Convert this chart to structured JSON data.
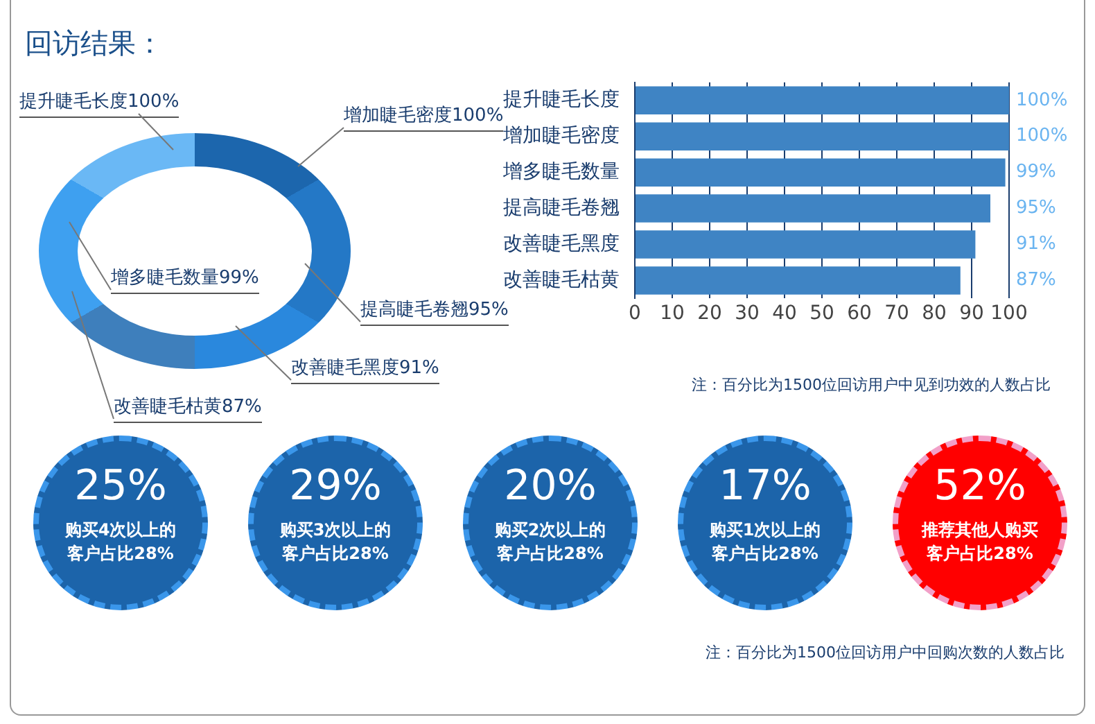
{
  "chart_data": [
    {
      "type": "other",
      "title": "回访结果：",
      "annotations": [
        "提升睫毛长度100%",
        "增加睫毛密度100%",
        "增多睫毛数量99%",
        "提高睫毛卷翘95%",
        "改善睫毛黑度91%",
        "改善睫毛枯黄87%"
      ]
    },
    {
      "type": "bar",
      "orientation": "horizontal",
      "categories": [
        "提升睫毛长度",
        "增加睫毛密度",
        "增多睫毛数量",
        "提高睫毛卷翘",
        "改善睫毛黑度",
        "改善睫毛枯黄"
      ],
      "values": [
        100,
        100,
        99,
        95,
        91,
        87
      ],
      "value_labels": [
        "100%",
        "100%",
        "99%",
        "95%",
        "91%",
        "87%"
      ],
      "color": "#3f84c4",
      "xlim": [
        0,
        100
      ],
      "xticks": [
        0,
        10,
        20,
        30,
        40,
        50,
        60,
        70,
        80,
        90,
        100
      ],
      "grid": "x",
      "annotations": [
        "注：百分比为1500位回访用户中见到功效的人数占比"
      ]
    },
    {
      "type": "other",
      "colors": [
        "#1c64aa",
        "#1c64aa",
        "#1c64aa",
        "#1c64aa",
        "#ff0000"
      ],
      "annotations": [
        "25%",
        "购买4次以上的",
        "客户占比28%",
        "29%",
        "购买3次以上的",
        "客户占比28%",
        "20%",
        "购买2次以上的",
        "客户占比28%",
        "17%",
        "购买1次以上的",
        "客户占比28%",
        "52%",
        "推荐其他人购买",
        "客户占比28%",
        "注：百分比为1500位回访用户中回购次数的人数占比"
      ]
    }
  ]
}
